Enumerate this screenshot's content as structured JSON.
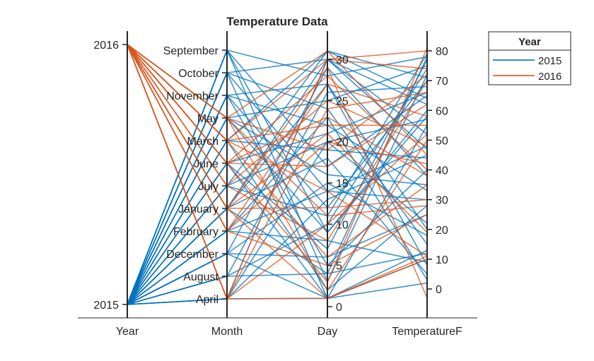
{
  "chart_data": {
    "type": "parallel-coordinates",
    "title": "Temperature Data",
    "coordinates": [
      "Year",
      "Month",
      "Day",
      "TemperatureF"
    ],
    "group_by": "Year",
    "legend": {
      "title": "Year",
      "entries": [
        "2015",
        "2016"
      ],
      "placement": "outside-top-right"
    },
    "colors": {
      "2015": "#0072BD",
      "2016": "#D95319"
    },
    "axes": {
      "Year": {
        "type": "categorical",
        "categories": [
          "2016",
          "2015"
        ],
        "tick_labels": [
          "2016",
          "2015"
        ]
      },
      "Month": {
        "type": "categorical",
        "categories": [
          "September",
          "October",
          "November",
          "May",
          "March",
          "June",
          "July",
          "January",
          "February",
          "December",
          "August",
          "April"
        ]
      },
      "Day": {
        "type": "numeric",
        "range": [
          0,
          31
        ],
        "ticks": [
          0,
          5,
          10,
          15,
          20,
          25,
          30
        ]
      },
      "TemperatureF": {
        "type": "numeric",
        "range": [
          -6,
          86
        ],
        "ticks": [
          0,
          10,
          20,
          30,
          40,
          50,
          60,
          70,
          80
        ]
      }
    },
    "records": [
      [
        2015,
        "September",
        3,
        72
      ],
      [
        2015,
        "September",
        17,
        65
      ],
      [
        2015,
        "September",
        28,
        78
      ],
      [
        2015,
        "October",
        1,
        55
      ],
      [
        2015,
        "October",
        14,
        48
      ],
      [
        2015,
        "October",
        30,
        62
      ],
      [
        2015,
        "November",
        5,
        40
      ],
      [
        2015,
        "November",
        22,
        33
      ],
      [
        2015,
        "November",
        12,
        70
      ],
      [
        2015,
        "May",
        9,
        58
      ],
      [
        2015,
        "May",
        25,
        75
      ],
      [
        2015,
        "March",
        2,
        28
      ],
      [
        2015,
        "March",
        19,
        44
      ],
      [
        2015,
        "June",
        7,
        77
      ],
      [
        2015,
        "June",
        21,
        66
      ],
      [
        2015,
        "July",
        11,
        79
      ],
      [
        2015,
        "July",
        31,
        71
      ],
      [
        2015,
        "January",
        4,
        12
      ],
      [
        2015,
        "January",
        18,
        5
      ],
      [
        2015,
        "January",
        27,
        20
      ],
      [
        2015,
        "February",
        8,
        9
      ],
      [
        2015,
        "February",
        23,
        3
      ],
      [
        2015,
        "December",
        6,
        25
      ],
      [
        2015,
        "December",
        15,
        18
      ],
      [
        2015,
        "December",
        29,
        38
      ],
      [
        2015,
        "August",
        10,
        74
      ],
      [
        2015,
        "August",
        26,
        68
      ],
      [
        2015,
        "April",
        1,
        10
      ],
      [
        2015,
        "April",
        13,
        45
      ],
      [
        2015,
        "April",
        30,
        52
      ],
      [
        2015,
        "September",
        9,
        60
      ],
      [
        2015,
        "October",
        24,
        15
      ],
      [
        2015,
        "November",
        27,
        8
      ],
      [
        2015,
        "May",
        16,
        35
      ],
      [
        2015,
        "June",
        1,
        2
      ],
      [
        2015,
        "July",
        20,
        57
      ],
      [
        2015,
        "January",
        30,
        47
      ],
      [
        2015,
        "February",
        14,
        30
      ],
      [
        2015,
        "December",
        1,
        13
      ],
      [
        2015,
        "August",
        4,
        78
      ],
      [
        2015,
        "April",
        20,
        22
      ],
      [
        2015,
        "March",
        31,
        64
      ],
      [
        2016,
        "May",
        2,
        50
      ],
      [
        2016,
        "May",
        19,
        72
      ],
      [
        2016,
        "May",
        31,
        45
      ],
      [
        2016,
        "March",
        6,
        35
      ],
      [
        2016,
        "March",
        22,
        55
      ],
      [
        2016,
        "March",
        14,
        11
      ],
      [
        2016,
        "June",
        3,
        81
      ],
      [
        2016,
        "June",
        17,
        62
      ],
      [
        2016,
        "June",
        28,
        40
      ],
      [
        2016,
        "July",
        8,
        70
      ],
      [
        2016,
        "July",
        25,
        48
      ],
      [
        2016,
        "January",
        1,
        11
      ],
      [
        2016,
        "January",
        12,
        30
      ],
      [
        2016,
        "January",
        29,
        -3
      ],
      [
        2016,
        "February",
        5,
        25
      ],
      [
        2016,
        "February",
        20,
        42
      ],
      [
        2016,
        "February",
        27,
        58
      ],
      [
        2016,
        "April",
        1,
        10
      ],
      [
        2016,
        "April",
        10,
        52
      ],
      [
        2016,
        "April",
        24,
        66
      ],
      [
        2016,
        "April",
        30,
        74
      ],
      [
        2016,
        "May",
        11,
        28
      ],
      [
        2016,
        "June",
        23,
        38
      ],
      [
        2016,
        "January",
        21,
        19
      ],
      [
        2016,
        "March",
        30,
        80
      ]
    ]
  }
}
